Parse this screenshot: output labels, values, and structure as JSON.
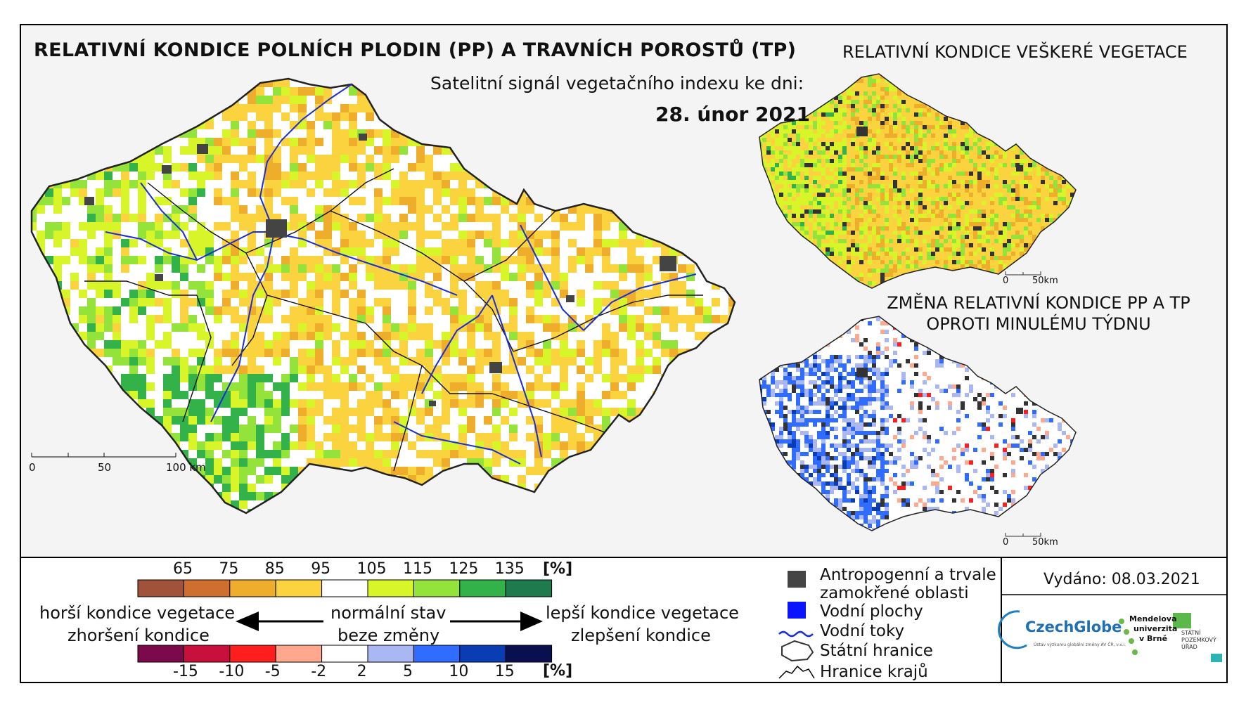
{
  "title": "RELATIVNÍ KONDICE POLNÍCH PLODIN (PP) A TRAVNÍCH POROSTŮ (TP)",
  "subtitle": "Satelitní signál vegetačního indexu ke dni:",
  "date": "28. únor 2021",
  "inset_titles": {
    "vegetation": "RELATIVNÍ KONDICE VEŠKERÉ VEGETACE",
    "change_line1": "ZMĚNA RELATIVNÍ KONDICE PP A TP",
    "change_line2": "OPROTI MINULÉMU TÝDNU"
  },
  "main_scale": {
    "zero": "0",
    "mid": "50",
    "end": "100 km"
  },
  "inset_scale": {
    "zero": "0",
    "end": "50km"
  },
  "condition_legend": {
    "ticks": [
      "65",
      "75",
      "85",
      "95",
      "105",
      "115",
      "125",
      "135"
    ],
    "unit": "[%]",
    "colors": [
      "#a0523a",
      "#cf6f2f",
      "#efad2c",
      "#fad33e",
      "#ffffff",
      "#d8f52a",
      "#94e33a",
      "#34b24a",
      "#1f7a4e"
    ]
  },
  "change_legend": {
    "ticks": [
      "-15",
      "-10",
      "-5",
      "-2",
      "2",
      "5",
      "10",
      "15"
    ],
    "unit": "[%]",
    "colors": [
      "#7a0a4a",
      "#c8103c",
      "#ff1e1e",
      "#ffa88e",
      "#ffffff",
      "#a9b7f2",
      "#2f6cff",
      "#0a3cb4",
      "#0a0f50"
    ]
  },
  "legend_labels": {
    "worse_condition": "horší kondice vegetace",
    "worse_change": "zhoršení kondice",
    "normal_condition": "normální stav",
    "normal_change": "beze změny",
    "better_condition": "lepší kondice vegetace",
    "better_change": "zlepšení kondice"
  },
  "symbol_legend": {
    "anthropogenic_line1": "Antropogenní a trvale",
    "anthropogenic_line2": "zamokřené oblasti",
    "water_bodies": "Vodní plochy",
    "rivers": "Vodní toky",
    "state_border": "Státní hranice",
    "region_border": "Hranice krajů",
    "colors": {
      "anthropogenic": "#444444",
      "water": "#0a14ff",
      "river": "#1a2fd6"
    }
  },
  "issued": "Vydáno: 08.03.2021",
  "logos": {
    "czechglobe": "CzechGlobe",
    "czechglobe_sub": "Ústav výzkumu globální změny AV ČR, v.v.i.",
    "mendel1": "Mendelova",
    "mendel2": "univerzita",
    "mendel3": "v Brně",
    "spu1": "STÁTNÍ",
    "spu2": "POZEMKOVÝ",
    "spu3": "ÚŘAD"
  }
}
